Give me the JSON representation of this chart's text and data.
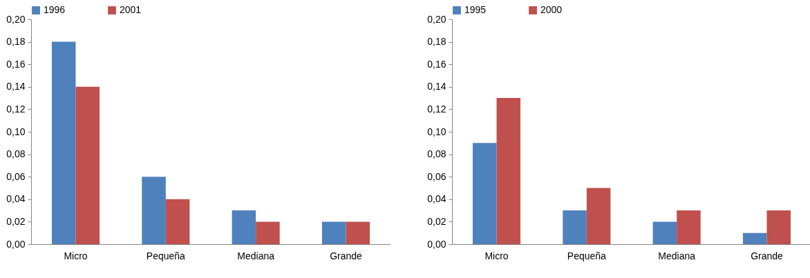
{
  "chart_data": [
    {
      "type": "bar",
      "categories": [
        "Micro",
        "Pequeña",
        "Mediana",
        "Grande"
      ],
      "legend": "top",
      "grid": false,
      "ylim": [
        0,
        0.2
      ],
      "yticks": [
        {
          "value": 0,
          "label": "0,00"
        },
        {
          "value": 0.02,
          "label": "0,02"
        },
        {
          "value": 0.04,
          "label": "0,04"
        },
        {
          "value": 0.06,
          "label": "0,06"
        },
        {
          "value": 0.08,
          "label": "0,08"
        },
        {
          "value": 0.1,
          "label": "0,10"
        },
        {
          "value": 0.12,
          "label": "0,12"
        },
        {
          "value": 0.14,
          "label": "0,14"
        },
        {
          "value": 0.16,
          "label": "0,16"
        },
        {
          "value": 0.18,
          "label": "0,18"
        },
        {
          "value": 0.2,
          "label": "0,20"
        }
      ],
      "series": [
        {
          "name": "1996",
          "color": "#4f81bd",
          "values": [
            0.18,
            0.06,
            0.03,
            0.02
          ]
        },
        {
          "name": "2001",
          "color": "#c0504d",
          "values": [
            0.14,
            0.04,
            0.02,
            0.02
          ]
        }
      ]
    },
    {
      "type": "bar",
      "categories": [
        "Micro",
        "Pequeña",
        "Mediana",
        "Grande"
      ],
      "legend": "top",
      "grid": false,
      "ylim": [
        0,
        0.2
      ],
      "yticks": [
        {
          "value": 0,
          "label": "0,00"
        },
        {
          "value": 0.02,
          "label": "0,02"
        },
        {
          "value": 0.04,
          "label": "0,04"
        },
        {
          "value": 0.06,
          "label": "0,06"
        },
        {
          "value": 0.08,
          "label": "0,08"
        },
        {
          "value": 0.1,
          "label": "0,10"
        },
        {
          "value": 0.12,
          "label": "0,12"
        },
        {
          "value": 0.14,
          "label": "0,14"
        },
        {
          "value": 0.16,
          "label": "0,16"
        },
        {
          "value": 0.18,
          "label": "0,18"
        },
        {
          "value": 0.2,
          "label": "0,20"
        }
      ],
      "series": [
        {
          "name": "1995",
          "color": "#4f81bd",
          "values": [
            0.09,
            0.03,
            0.02,
            0.01
          ]
        },
        {
          "name": "2000",
          "color": "#c0504d",
          "values": [
            0.13,
            0.05,
            0.03,
            0.03
          ]
        }
      ]
    }
  ]
}
